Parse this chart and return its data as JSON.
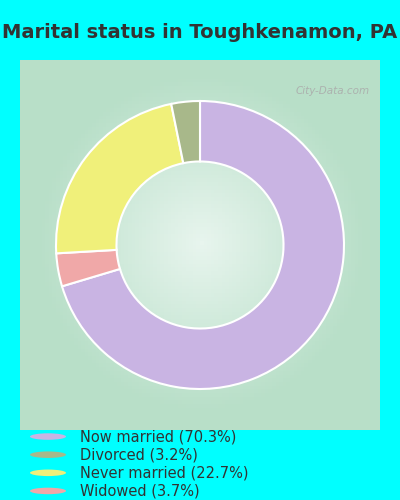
{
  "title": "Marital status in Toughkenamon, PA",
  "slices": [
    70.3,
    3.2,
    22.7,
    3.7
  ],
  "labels": [
    "Now married (70.3%)",
    "Divorced (3.2%)",
    "Never married (22.7%)",
    "Widowed (3.7%)"
  ],
  "colors": [
    "#c9b4e3",
    "#a8b88a",
    "#f0f07a",
    "#f0a8a8"
  ],
  "start_angle": 90,
  "bg_color": "#00ffff",
  "chart_bg_outer": "#b8dfc8",
  "chart_bg_inner": "#e8f5ee",
  "watermark": "City-Data.com",
  "title_fontsize": 14,
  "legend_fontsize": 10.5,
  "title_color": "#333333",
  "legend_text_color": "#333333"
}
